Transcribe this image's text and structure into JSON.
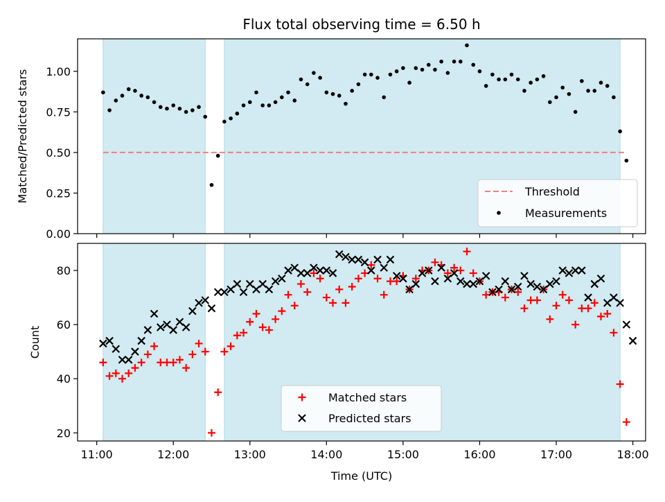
{
  "colors": {
    "shade": "#add8e6",
    "threshold": "#f08080",
    "measurement": "#000000",
    "matched": "#ff0000",
    "predicted": "#000000"
  },
  "chart_data": [
    {
      "type": "scatter",
      "title": "Flux total observing time = 6.50 h",
      "xlabel": "",
      "ylabel": "Matched/Predicted stars",
      "xlim": [
        "10:45",
        "18:10"
      ],
      "ylim": [
        0,
        1.2
      ],
      "yticks": [
        "0.00",
        "0.25",
        "0.50",
        "0.75",
        "1.00"
      ],
      "xticks": [
        "11:00",
        "12:00",
        "13:00",
        "14:00",
        "15:00",
        "16:00",
        "17:00",
        "18:00"
      ],
      "grid": false,
      "legend_position": "lower-right",
      "shaded_intervals": [
        [
          "11:05",
          "12:25"
        ],
        [
          "12:40",
          "17:50"
        ]
      ],
      "threshold": {
        "name": "Threshold",
        "value": 0.5,
        "x_range": [
          "11:05",
          "17:55"
        ],
        "style": "dashed"
      },
      "series": [
        {
          "name": "Measurements",
          "marker": "dot",
          "points": [
            [
              "11:05",
              0.87
            ],
            [
              "11:10",
              0.76
            ],
            [
              "11:15",
              0.82
            ],
            [
              "11:20",
              0.85
            ],
            [
              "11:25",
              0.89
            ],
            [
              "11:30",
              0.88
            ],
            [
              "11:35",
              0.85
            ],
            [
              "11:40",
              0.84
            ],
            [
              "11:45",
              0.81
            ],
            [
              "11:50",
              0.78
            ],
            [
              "11:55",
              0.77
            ],
            [
              "12:00",
              0.79
            ],
            [
              "12:05",
              0.77
            ],
            [
              "12:10",
              0.75
            ],
            [
              "12:15",
              0.76
            ],
            [
              "12:20",
              0.78
            ],
            [
              "12:25",
              0.72
            ],
            [
              "12:30",
              0.3
            ],
            [
              "12:35",
              0.48
            ],
            [
              "12:40",
              0.69
            ],
            [
              "12:45",
              0.71
            ],
            [
              "12:50",
              0.74
            ],
            [
              "12:55",
              0.79
            ],
            [
              "13:00",
              0.81
            ],
            [
              "13:05",
              0.87
            ],
            [
              "13:10",
              0.79
            ],
            [
              "13:15",
              0.79
            ],
            [
              "13:20",
              0.81
            ],
            [
              "13:25",
              0.84
            ],
            [
              "13:30",
              0.87
            ],
            [
              "13:35",
              0.82
            ],
            [
              "13:40",
              0.95
            ],
            [
              "13:45",
              0.92
            ],
            [
              "13:50",
              0.99
            ],
            [
              "13:55",
              0.96
            ],
            [
              "14:00",
              0.87
            ],
            [
              "14:05",
              0.86
            ],
            [
              "14:10",
              0.85
            ],
            [
              "14:15",
              0.8
            ],
            [
              "14:20",
              0.88
            ],
            [
              "14:25",
              0.92
            ],
            [
              "14:30",
              0.98
            ],
            [
              "14:35",
              0.98
            ],
            [
              "14:40",
              0.96
            ],
            [
              "14:45",
              0.84
            ],
            [
              "14:50",
              0.98
            ],
            [
              "14:55",
              1.0
            ],
            [
              "15:00",
              1.02
            ],
            [
              "15:05",
              0.93
            ],
            [
              "15:10",
              1.02
            ],
            [
              "15:15",
              1.01
            ],
            [
              "15:20",
              1.04
            ],
            [
              "15:25",
              1.01
            ],
            [
              "15:30",
              1.06
            ],
            [
              "15:35",
              0.99
            ],
            [
              "15:40",
              1.06
            ],
            [
              "15:45",
              1.06
            ],
            [
              "15:50",
              1.16
            ],
            [
              "15:55",
              1.04
            ],
            [
              "16:00",
              1.0
            ],
            [
              "16:05",
              0.91
            ],
            [
              "16:10",
              0.98
            ],
            [
              "16:15",
              0.95
            ],
            [
              "16:20",
              0.95
            ],
            [
              "16:25",
              0.98
            ],
            [
              "16:30",
              0.95
            ],
            [
              "16:35",
              0.88
            ],
            [
              "16:40",
              0.93
            ],
            [
              "16:45",
              0.95
            ],
            [
              "16:50",
              0.97
            ],
            [
              "16:55",
              0.81
            ],
            [
              "17:00",
              0.84
            ],
            [
              "17:05",
              0.9
            ],
            [
              "17:10",
              0.86
            ],
            [
              "17:15",
              0.75
            ],
            [
              "17:20",
              0.94
            ],
            [
              "17:25",
              0.88
            ],
            [
              "17:30",
              0.88
            ],
            [
              "17:35",
              0.93
            ],
            [
              "17:40",
              0.91
            ],
            [
              "17:45",
              0.84
            ],
            [
              "17:50",
              0.63
            ],
            [
              "17:55",
              0.45
            ]
          ]
        }
      ]
    },
    {
      "type": "scatter",
      "title": "",
      "xlabel": "Time (UTC)",
      "ylabel": "Count",
      "xlim": [
        "10:45",
        "18:10"
      ],
      "ylim": [
        17,
        90
      ],
      "yticks": [
        "20",
        "40",
        "60",
        "80"
      ],
      "xticks": [
        "11:00",
        "12:00",
        "13:00",
        "14:00",
        "15:00",
        "16:00",
        "17:00",
        "18:00"
      ],
      "grid": false,
      "legend_position": "lower-center",
      "shaded_intervals": [
        [
          "11:05",
          "12:25"
        ],
        [
          "12:40",
          "17:50"
        ]
      ],
      "series": [
        {
          "name": "Matched stars",
          "marker": "plus",
          "points": [
            [
              "11:05",
              46
            ],
            [
              "11:10",
              41
            ],
            [
              "11:15",
              42
            ],
            [
              "11:20",
              40
            ],
            [
              "11:25",
              42
            ],
            [
              "11:30",
              44
            ],
            [
              "11:35",
              46
            ],
            [
              "11:40",
              49
            ],
            [
              "11:45",
              52
            ],
            [
              "11:50",
              46
            ],
            [
              "11:55",
              46
            ],
            [
              "12:00",
              46
            ],
            [
              "12:05",
              47
            ],
            [
              "12:10",
              44
            ],
            [
              "12:15",
              49
            ],
            [
              "12:20",
              53
            ],
            [
              "12:25",
              50
            ],
            [
              "12:30",
              20
            ],
            [
              "12:35",
              35
            ],
            [
              "12:40",
              50
            ],
            [
              "12:45",
              52
            ],
            [
              "12:50",
              56
            ],
            [
              "12:55",
              57
            ],
            [
              "13:00",
              61
            ],
            [
              "13:05",
              64
            ],
            [
              "13:10",
              59
            ],
            [
              "13:15",
              58
            ],
            [
              "13:20",
              62
            ],
            [
              "13:25",
              65
            ],
            [
              "13:30",
              71
            ],
            [
              "13:35",
              67
            ],
            [
              "13:40",
              75
            ],
            [
              "13:45",
              72
            ],
            [
              "13:50",
              79
            ],
            [
              "13:55",
              77
            ],
            [
              "14:00",
              70
            ],
            [
              "14:05",
              68
            ],
            [
              "14:10",
              73
            ],
            [
              "14:15",
              68
            ],
            [
              "14:20",
              74
            ],
            [
              "14:25",
              77
            ],
            [
              "14:30",
              79
            ],
            [
              "14:35",
              82
            ],
            [
              "14:40",
              77
            ],
            [
              "14:45",
              71
            ],
            [
              "14:50",
              76
            ],
            [
              "14:55",
              76
            ],
            [
              "15:00",
              78
            ],
            [
              "15:05",
              73
            ],
            [
              "15:10",
              77
            ],
            [
              "15:15",
              80
            ],
            [
              "15:20",
              80
            ],
            [
              "15:25",
              83
            ],
            [
              "15:30",
              82
            ],
            [
              "15:35",
              79
            ],
            [
              "15:40",
              81
            ],
            [
              "15:45",
              80
            ],
            [
              "15:50",
              87
            ],
            [
              "15:55",
              79
            ],
            [
              "16:00",
              76
            ],
            [
              "16:05",
              71
            ],
            [
              "16:10",
              72
            ],
            [
              "16:15",
              72
            ],
            [
              "16:20",
              70
            ],
            [
              "16:25",
              73
            ],
            [
              "16:30",
              72
            ],
            [
              "16:35",
              66
            ],
            [
              "16:40",
              69
            ],
            [
              "16:45",
              69
            ],
            [
              "16:50",
              73
            ],
            [
              "16:55",
              62
            ],
            [
              "17:00",
              67
            ],
            [
              "17:05",
              71
            ],
            [
              "17:10",
              69
            ],
            [
              "17:15",
              60
            ],
            [
              "17:20",
              66
            ],
            [
              "17:25",
              66
            ],
            [
              "17:30",
              68
            ],
            [
              "17:35",
              63
            ],
            [
              "17:40",
              64
            ],
            [
              "17:45",
              57
            ],
            [
              "17:50",
              38
            ],
            [
              "17:55",
              24
            ]
          ]
        },
        {
          "name": "Predicted stars",
          "marker": "x",
          "points": [
            [
              "11:05",
              53
            ],
            [
              "11:10",
              54
            ],
            [
              "11:15",
              51
            ],
            [
              "11:20",
              47
            ],
            [
              "11:25",
              47
            ],
            [
              "11:30",
              50
            ],
            [
              "11:35",
              54
            ],
            [
              "11:40",
              58
            ],
            [
              "11:45",
              64
            ],
            [
              "11:50",
              59
            ],
            [
              "11:55",
              60
            ],
            [
              "12:00",
              58
            ],
            [
              "12:05",
              61
            ],
            [
              "12:10",
              59
            ],
            [
              "12:15",
              65
            ],
            [
              "12:20",
              68
            ],
            [
              "12:25",
              69
            ],
            [
              "12:30",
              66
            ],
            [
              "12:35",
              72
            ],
            [
              "12:40",
              72
            ],
            [
              "12:45",
              73
            ],
            [
              "12:50",
              75
            ],
            [
              "12:55",
              72
            ],
            [
              "13:00",
              75
            ],
            [
              "13:05",
              73
            ],
            [
              "13:10",
              75
            ],
            [
              "13:15",
              73
            ],
            [
              "13:20",
              76
            ],
            [
              "13:25",
              77
            ],
            [
              "13:30",
              80
            ],
            [
              "13:35",
              81
            ],
            [
              "13:40",
              79
            ],
            [
              "13:45",
              79
            ],
            [
              "13:50",
              81
            ],
            [
              "13:55",
              80
            ],
            [
              "14:00",
              80
            ],
            [
              "14:05",
              79
            ],
            [
              "14:10",
              86
            ],
            [
              "14:15",
              85
            ],
            [
              "14:20",
              84
            ],
            [
              "14:25",
              84
            ],
            [
              "14:30",
              83
            ],
            [
              "14:35",
              80
            ],
            [
              "14:40",
              84
            ],
            [
              "14:45",
              81
            ],
            [
              "14:50",
              84
            ],
            [
              "14:55",
              78
            ],
            [
              "15:00",
              77
            ],
            [
              "15:05",
              73
            ],
            [
              "15:10",
              75
            ],
            [
              "15:15",
              79
            ],
            [
              "15:20",
              80
            ],
            [
              "15:25",
              76
            ],
            [
              "15:30",
              81
            ],
            [
              "15:35",
              77
            ],
            [
              "15:40",
              79
            ],
            [
              "15:45",
              76
            ],
            [
              "15:50",
              75
            ],
            [
              "15:55",
              75
            ],
            [
              "16:00",
              76
            ],
            [
              "16:05",
              78
            ],
            [
              "16:10",
              72
            ],
            [
              "16:15",
              73
            ],
            [
              "16:20",
              76
            ],
            [
              "16:25",
              73
            ],
            [
              "16:30",
              74
            ],
            [
              "16:35",
              78
            ],
            [
              "16:40",
              75
            ],
            [
              "16:45",
              74
            ],
            [
              "16:50",
              73
            ],
            [
              "16:55",
              75
            ],
            [
              "17:00",
              76
            ],
            [
              "17:05",
              80
            ],
            [
              "17:10",
              79
            ],
            [
              "17:15",
              80
            ],
            [
              "17:20",
              80
            ],
            [
              "17:25",
              70
            ],
            [
              "17:30",
              75
            ],
            [
              "17:35",
              77
            ],
            [
              "17:40",
              68
            ],
            [
              "17:45",
              70
            ],
            [
              "17:50",
              68
            ],
            [
              "17:55",
              60
            ],
            [
              "18:00",
              54
            ]
          ]
        }
      ]
    }
  ]
}
